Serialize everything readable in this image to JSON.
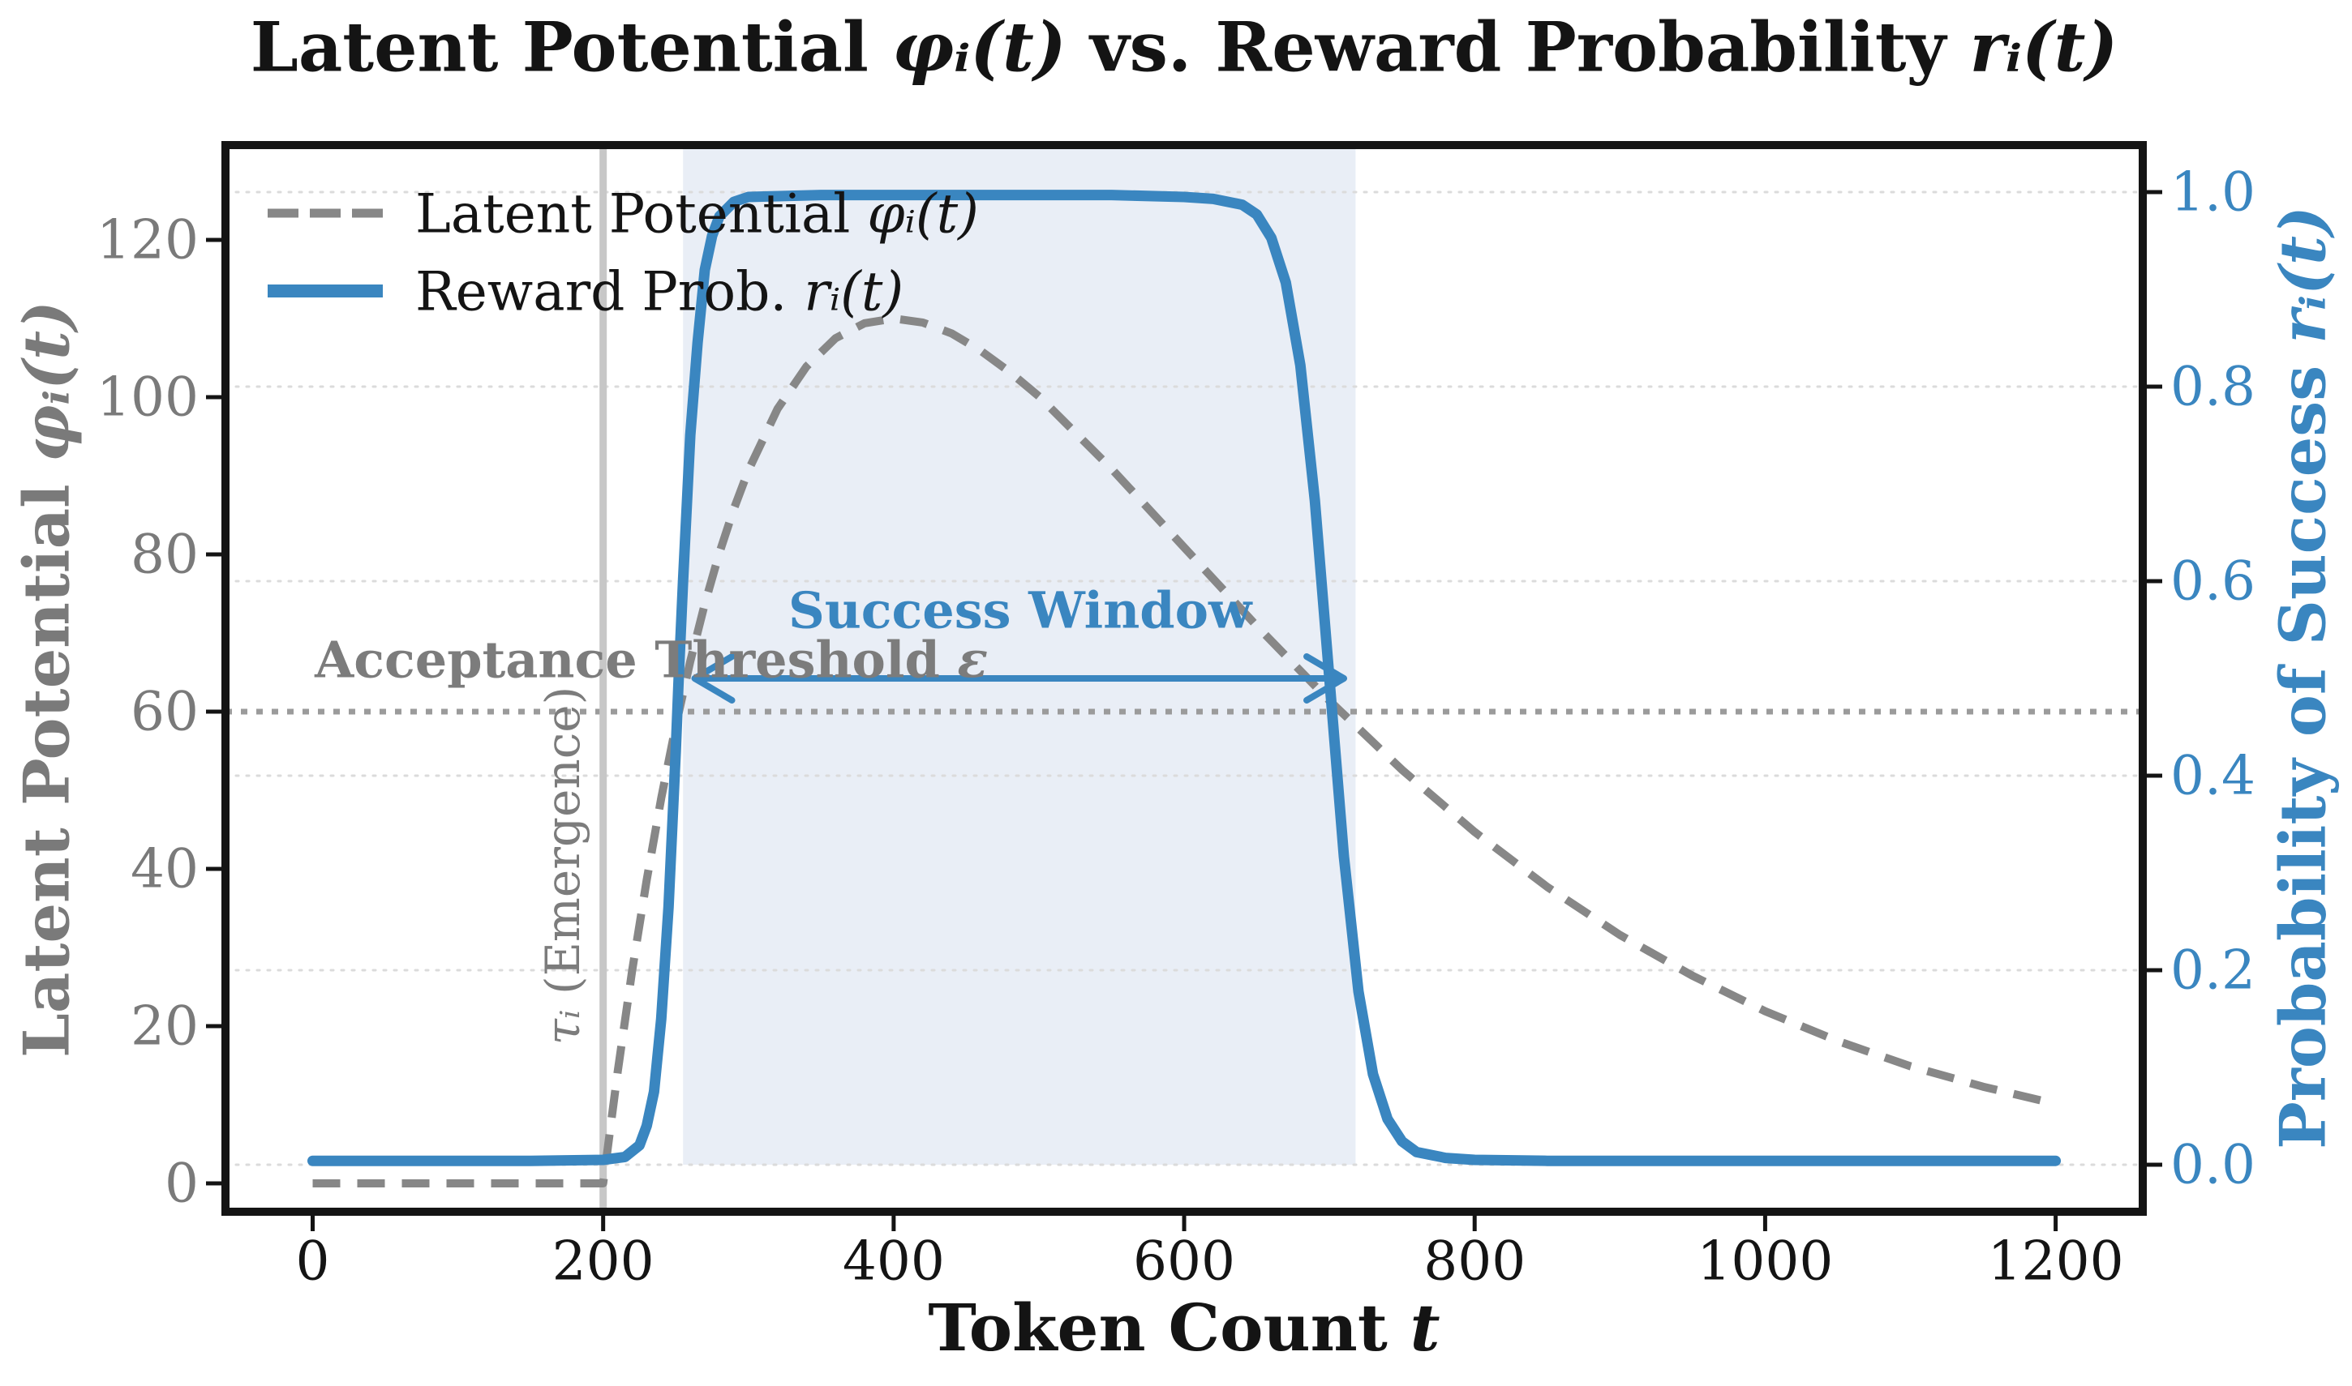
{
  "title": {
    "prefix": "Latent Potential ",
    "math1": "φᵢ(t)",
    "mid": " vs. Reward Probability ",
    "math2": "rᵢ(t)"
  },
  "axes": {
    "x": {
      "label_prefix": "Token Count ",
      "label_math": "t",
      "ticks": [
        {
          "v": 0,
          "label": "0"
        },
        {
          "v": 200,
          "label": "200"
        },
        {
          "v": 400,
          "label": "400"
        },
        {
          "v": 600,
          "label": "600"
        },
        {
          "v": 800,
          "label": "800"
        },
        {
          "v": 1000,
          "label": "1000"
        },
        {
          "v": 1200,
          "label": "1200"
        }
      ]
    },
    "y_left": {
      "label_prefix": "Latent Potential ",
      "label_math": "φᵢ(t)",
      "color": "#7a7a7a",
      "ticks": [
        {
          "v": 0,
          "label": "0"
        },
        {
          "v": 20,
          "label": "20"
        },
        {
          "v": 40,
          "label": "40"
        },
        {
          "v": 60,
          "label": "60"
        },
        {
          "v": 80,
          "label": "80"
        },
        {
          "v": 100,
          "label": "100"
        },
        {
          "v": 120,
          "label": "120"
        }
      ]
    },
    "y_right": {
      "label_prefix": "Probability of Success ",
      "label_math": "rᵢ(t)",
      "color": "#3a86c0",
      "ticks": [
        {
          "v": 0.0,
          "label": "0.0"
        },
        {
          "v": 0.2,
          "label": "0.2"
        },
        {
          "v": 0.4,
          "label": "0.4"
        },
        {
          "v": 0.6,
          "label": "0.6"
        },
        {
          "v": 0.8,
          "label": "0.8"
        },
        {
          "v": 1.0,
          "label": "1.0"
        }
      ]
    }
  },
  "legend": {
    "items": [
      {
        "prefix": "Latent Potential ",
        "math": "φᵢ(t)",
        "style": "dashed",
        "color": "#878787"
      },
      {
        "prefix": "Reward Prob. ",
        "math": "rᵢ(t)",
        "style": "solid",
        "color": "#3a86c0"
      }
    ]
  },
  "annotations": {
    "success_window": {
      "label": "Success Window",
      "t_start": 255,
      "t_end": 718,
      "arrow_t_start": 263,
      "arrow_t_end": 710,
      "arrow_r": 0.5,
      "label_t": 487,
      "label_r": 0.57,
      "color": "#3a86c0",
      "fill": "#e9eef6"
    },
    "acceptance_threshold": {
      "prefix": "Acceptance Threshold ",
      "math": "ε",
      "phi": 60,
      "label_t": 1.5,
      "label_phi": 66.6,
      "line_color": "#9b9b9b",
      "text_color": "#7c7c7c"
    },
    "emergence": {
      "math": "τᵢ",
      "suffix": " (Emergence)",
      "t": 200,
      "label_t": 172,
      "label_phi": 40.4,
      "line_color": "#c7c7c7",
      "text_color": "#7c7c7c"
    }
  },
  "style_colors": {
    "blue": "#3a86c0",
    "gray_curve": "#878787",
    "grid": "#dbdbdb",
    "black": "#141414",
    "window_fill": "#e9eef6"
  },
  "chart_data": {
    "type": "line",
    "title": "Latent Potential φᵢ(t) vs. Reward Probability rᵢ(t)",
    "xlabel": "Token Count t",
    "ylabel_left": "Latent Potential φᵢ(t)",
    "ylabel_right": "Probability of Success rᵢ(t)",
    "xlim": [
      -60,
      1260
    ],
    "ylim_left": [
      -3.5,
      132.5
    ],
    "ylim_right": [
      -0.05,
      1.05
    ],
    "grid": "horizontal, dotted, aligned to right-axis ticks",
    "legend_position": "upper left, no frame",
    "series": [
      {
        "name": "Latent Potential φᵢ(t)",
        "axis": "left",
        "style": "dashed",
        "color": "#878787",
        "x": [
          0,
          100,
          150,
          190,
          200,
          210,
          220,
          230,
          240,
          250,
          260,
          270,
          280,
          290,
          300,
          320,
          340,
          360,
          380,
          400,
          420,
          440,
          460,
          480,
          500,
          550,
          600,
          650,
          700,
          750,
          800,
          850,
          900,
          950,
          1000,
          1050,
          1100,
          1150,
          1200
        ],
        "y": [
          0,
          0,
          0,
          0,
          0,
          14.2,
          27.1,
          38.6,
          49.0,
          58.2,
          66.4,
          73.7,
          80.2,
          85.8,
          90.7,
          98.5,
          103.9,
          107.5,
          109.4,
          110.0,
          109.5,
          108.1,
          105.9,
          103.2,
          100.1,
          90.9,
          80.9,
          70.9,
          61.4,
          52.6,
          44.7,
          37.7,
          31.6,
          26.4,
          21.9,
          18.1,
          14.9,
          12.3,
          10.1
        ]
      },
      {
        "name": "Reward Prob. rᵢ(t)",
        "axis": "right",
        "style": "solid",
        "color": "#3a86c0",
        "x": [
          0,
          100,
          150,
          200,
          215,
          225,
          230,
          235,
          240,
          245,
          250,
          252,
          255,
          260,
          265,
          270,
          275,
          280,
          290,
          300,
          350,
          400,
          450,
          500,
          550,
          600,
          620,
          640,
          650,
          660,
          670,
          680,
          690,
          700,
          710,
          720,
          730,
          740,
          750,
          760,
          780,
          800,
          850,
          900,
          1000,
          1100,
          1200
        ],
        "y": [
          0.004,
          0.004,
          0.004,
          0.005,
          0.008,
          0.02,
          0.04,
          0.075,
          0.15,
          0.265,
          0.425,
          0.5,
          0.6,
          0.75,
          0.845,
          0.92,
          0.955,
          0.975,
          0.99,
          0.995,
          0.997,
          0.997,
          0.997,
          0.997,
          0.997,
          0.995,
          0.993,
          0.987,
          0.977,
          0.953,
          0.907,
          0.822,
          0.683,
          0.5,
          0.317,
          0.178,
          0.093,
          0.047,
          0.024,
          0.013,
          0.007,
          0.005,
          0.004,
          0.004,
          0.004,
          0.004,
          0.004
        ]
      }
    ],
    "annotations": {
      "acceptance_threshold_phi": 60,
      "emergence_tau": 200,
      "success_window_t": [
        255,
        718
      ]
    }
  }
}
